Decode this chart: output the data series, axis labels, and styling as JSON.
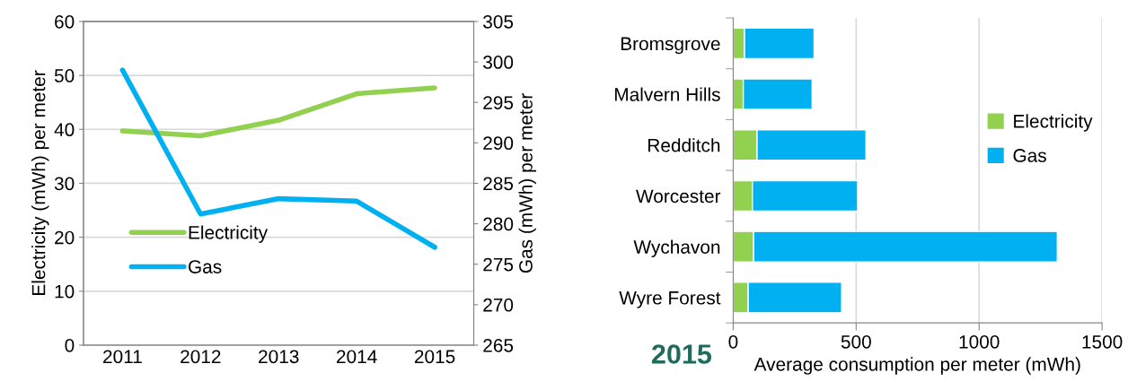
{
  "chart_data": [
    {
      "type": "line",
      "categories": [
        "2011",
        "2012",
        "2013",
        "2014",
        "2015"
      ],
      "ylabel": "Electricity (mWh) per meter",
      "y2label": "Gas (mWh) per meter",
      "ylim": [
        0,
        60
      ],
      "yticks": [
        0,
        10,
        20,
        30,
        40,
        50,
        60
      ],
      "y2lim": [
        265,
        305
      ],
      "y2ticks": [
        265,
        270,
        275,
        280,
        285,
        290,
        295,
        300,
        305
      ],
      "grid": "y",
      "legend": "center left",
      "marker": "none",
      "line_style": "solid",
      "series": [
        {
          "name": "Electricity",
          "color": "#92d050",
          "values": [
            39.7,
            38.8,
            41.7,
            46.6,
            47.7
          ]
        },
        {
          "name": "Gas",
          "color": "#00b0f0",
          "axis": "y2",
          "values": [
            299.0,
            281.2,
            283.1,
            282.8,
            277.1
          ]
        }
      ]
    },
    {
      "type": "bar",
      "orientation": "horizontal",
      "stacked": true,
      "categories": [
        "Bromsgrove",
        "Malvern Hills",
        "Redditch",
        "Worcester",
        "Wychavon",
        "Wyre Forest"
      ],
      "xlabel": "Average consumption per meter (mWh)",
      "xlim": [
        0,
        1500
      ],
      "xticks": [
        0,
        500,
        1000,
        1500
      ],
      "grid": "x",
      "legend": "center right",
      "annotations": [
        "2015"
      ],
      "series": [
        {
          "name": "Electricity",
          "color": "#92d050",
          "values": [
            46,
            41,
            97,
            78,
            83,
            61
          ]
        },
        {
          "name": "Gas",
          "color": "#00b0f0",
          "values": [
            283,
            280,
            443,
            428,
            1235,
            380
          ]
        }
      ]
    }
  ]
}
